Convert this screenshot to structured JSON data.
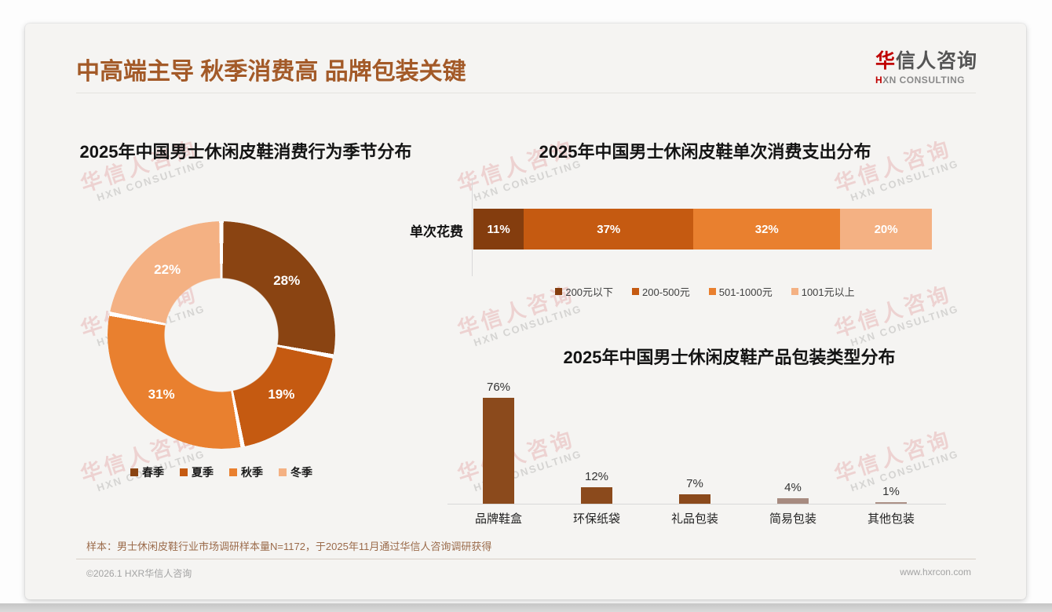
{
  "header": {
    "title": "中高端主导 秋季消费高 品牌包装关键",
    "accent_color": "#a35a28"
  },
  "logo": {
    "zh_first": "华",
    "zh_rest": "信人咨询",
    "en_first": "H",
    "en_rest": "XN CONSULTING"
  },
  "watermark": {
    "zh": "华信人咨询",
    "en": "HXN CONSULTING"
  },
  "chart_data": [
    {
      "type": "pie",
      "subtype": "donut",
      "title": "2025年中国男士休闲皮鞋消费行为季节分布",
      "categories": [
        "春季",
        "夏季",
        "秋季",
        "冬季"
      ],
      "values": [
        28,
        19,
        31,
        22
      ],
      "labels": [
        "28%",
        "19%",
        "31%",
        "22%"
      ],
      "colors": [
        "#8a4412",
        "#c55a11",
        "#e9802f",
        "#f4b183"
      ],
      "legend_position": "bottom",
      "start_angle_deg": 0,
      "direction": "clockwise"
    },
    {
      "type": "bar",
      "subtype": "horizontal-stacked",
      "title": "2025年中国男士休闲皮鞋单次消费支出分布",
      "row_label": "单次花费",
      "categories": [
        "200元以下",
        "200-500元",
        "501-1000元",
        "1001元以上"
      ],
      "values": [
        11,
        37,
        32,
        20
      ],
      "labels": [
        "11%",
        "37%",
        "32%",
        "20%"
      ],
      "colors": [
        "#843d0e",
        "#c55a11",
        "#e9802f",
        "#f4b183"
      ],
      "legend_position": "bottom",
      "xlim": [
        0,
        100
      ]
    },
    {
      "type": "bar",
      "subtype": "vertical",
      "title": "2025年中国男士休闲皮鞋产品包装类型分布",
      "categories": [
        "品牌鞋盒",
        "环保纸袋",
        "礼品包装",
        "简易包装",
        "其他包装"
      ],
      "values": [
        76,
        12,
        7,
        4,
        1
      ],
      "labels": [
        "76%",
        "12%",
        "7%",
        "4%",
        "1%"
      ],
      "colors": [
        "#8b4a1c",
        "#8b4a1c",
        "#8b4a1c",
        "#a78b80",
        "#ac9187"
      ],
      "ylim": [
        0,
        86
      ],
      "grid": false
    }
  ],
  "note": "样本：男士休闲皮鞋行业市场调研样本量N=1172，于2025年11月通过华信人咨询调研获得",
  "footer": {
    "left": "©2026.1 HXR华信人咨询",
    "right": "www.hxrcon.com"
  }
}
